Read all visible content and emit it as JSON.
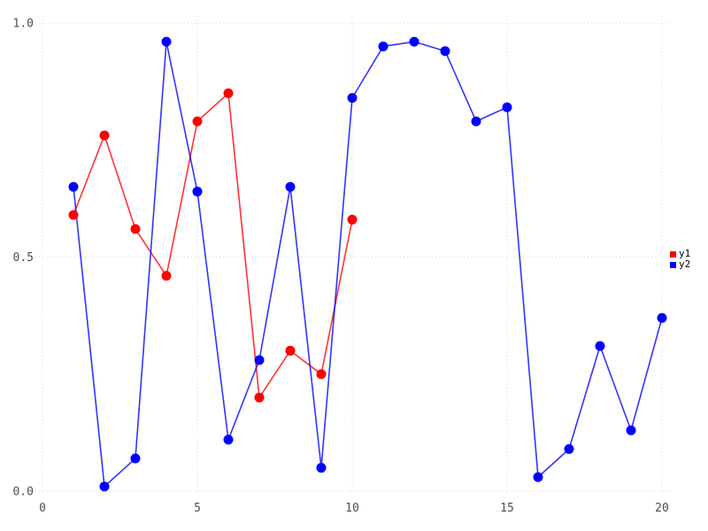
{
  "chart_data": {
    "type": "line",
    "title": "",
    "xlabel": "",
    "ylabel": "",
    "xlim": [
      0,
      20
    ],
    "ylim": [
      0.0,
      1.0
    ],
    "x_ticks": [
      0,
      5,
      10,
      15,
      20
    ],
    "x_tick_labels": [
      "0",
      "5",
      "10",
      "15",
      "20"
    ],
    "y_ticks": [
      0.0,
      0.5,
      1.0
    ],
    "y_tick_labels": [
      "0.0",
      "0.5",
      "1.0"
    ],
    "grid": true,
    "grid_style": "dotted",
    "legend_position": "right-middle",
    "series": [
      {
        "name": "y1",
        "color": "#ff0000",
        "marker": "circle",
        "x": [
          1,
          2,
          3,
          4,
          5,
          6,
          7,
          8,
          9,
          10
        ],
        "values": [
          0.59,
          0.76,
          0.56,
          0.46,
          0.79,
          0.85,
          0.2,
          0.3,
          0.25,
          0.58
        ]
      },
      {
        "name": "y2",
        "color": "#0000ff",
        "marker": "circle",
        "x": [
          1,
          2,
          3,
          4,
          5,
          6,
          7,
          8,
          9,
          10,
          11,
          12,
          13,
          14,
          15,
          16,
          17,
          18,
          19,
          20
        ],
        "values": [
          0.65,
          0.01,
          0.07,
          0.96,
          0.64,
          0.11,
          0.28,
          0.65,
          0.05,
          0.84,
          0.95,
          0.96,
          0.94,
          0.79,
          0.82,
          0.03,
          0.09,
          0.31,
          0.13,
          0.37
        ]
      }
    ],
    "colors": {
      "background": "#ffffff",
      "grid": "#d8d8e4",
      "tick_label": "#4d4d55",
      "legend_text": "#000000"
    }
  }
}
